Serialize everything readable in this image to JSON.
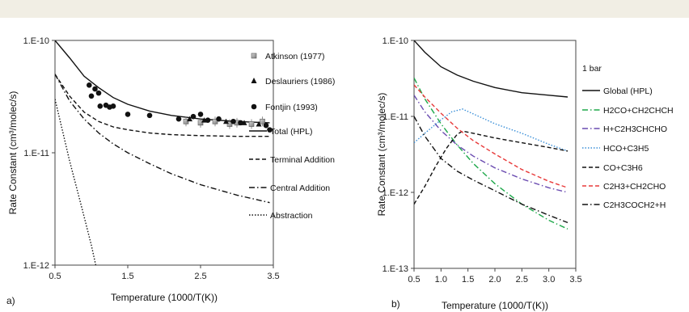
{
  "chart_data": [
    {
      "type": "line",
      "panel_label": "a)",
      "xlabel": "Temperature (1000/T(K))",
      "ylabel": "Rate Constant (cm³/molec/s)",
      "xlim": [
        0.5,
        3.5
      ],
      "ylim": [
        1e-12,
        1e-10
      ],
      "yscale": "log",
      "x_ticks": [
        0.5,
        1.5,
        2.5,
        3.5
      ],
      "x_tick_labels": [
        "0.5",
        "1.5",
        "2.5",
        "3.5"
      ],
      "y_ticks": [
        1e-12,
        1e-11,
        1e-10
      ],
      "y_tick_labels": [
        "1.E-12",
        "1.E-11",
        "1.E-10"
      ],
      "grid": false,
      "legend_position": "right",
      "marker_series": [
        {
          "name": "Atkinson (1977)",
          "marker": "square",
          "color": "#9a9a9a",
          "x": [
            2.3,
            2.5,
            2.7,
            2.9,
            3.0,
            3.2,
            3.35
          ],
          "y": [
            1.9e-11,
            1.85e-11,
            1.9e-11,
            1.8e-11,
            1.85e-11,
            1.8e-11,
            1.9e-11
          ]
        },
        {
          "name": "Deslauriers (1986)",
          "marker": "triangle",
          "color": "#111111",
          "x": [
            2.35,
            2.55,
            2.85,
            3.1,
            3.3
          ],
          "y": [
            2e-11,
            1.95e-11,
            1.9e-11,
            1.85e-11,
            1.8e-11
          ]
        },
        {
          "name": "Fontjin (1993)",
          "marker": "circle",
          "color": "#111111",
          "x": [
            0.97,
            1.0,
            1.05,
            1.1,
            1.12,
            1.2,
            1.25,
            1.3,
            1.5,
            1.8,
            2.2,
            2.4,
            2.5,
            2.6,
            2.75,
            2.95,
            3.05,
            3.4,
            3.45
          ],
          "y": [
            4e-11,
            3.2e-11,
            3.7e-11,
            3.4e-11,
            2.6e-11,
            2.65e-11,
            2.55e-11,
            2.6e-11,
            2.2e-11,
            2.15e-11,
            2e-11,
            2.1e-11,
            2.2e-11,
            1.95e-11,
            2e-11,
            1.9e-11,
            1.85e-11,
            1.75e-11,
            1.6e-11
          ]
        }
      ],
      "series": [
        {
          "name": "Total (HPL)",
          "style": "solid",
          "color": "#111111",
          "x": [
            0.5,
            0.7,
            0.9,
            1.1,
            1.3,
            1.5,
            1.8,
            2.1,
            2.5,
            3.0,
            3.45
          ],
          "y": [
            1e-10,
            7e-11,
            4.8e-11,
            3.8e-11,
            3.1e-11,
            2.7e-11,
            2.35e-11,
            2.15e-11,
            2e-11,
            1.9e-11,
            1.85e-11
          ]
        },
        {
          "name": "Terminal Addition",
          "style": "dashed",
          "color": "#111111",
          "x": [
            0.5,
            0.7,
            0.9,
            1.1,
            1.3,
            1.5,
            1.8,
            2.1,
            2.5,
            3.0,
            3.45
          ],
          "y": [
            5e-11,
            3.2e-11,
            2.3e-11,
            1.9e-11,
            1.7e-11,
            1.6e-11,
            1.5e-11,
            1.45e-11,
            1.42e-11,
            1.4e-11,
            1.4e-11
          ]
        },
        {
          "name": "Central Addition",
          "style": "dashdot",
          "color": "#111111",
          "x": [
            0.5,
            0.7,
            0.9,
            1.1,
            1.3,
            1.5,
            1.8,
            2.1,
            2.5,
            3.0,
            3.45
          ],
          "y": [
            5e-11,
            2.9e-11,
            2e-11,
            1.5e-11,
            1.2e-11,
            1e-11,
            8e-12,
            6.5e-12,
            5.2e-12,
            4.2e-12,
            3.6e-12
          ]
        },
        {
          "name": "Abstraction",
          "style": "dotted",
          "color": "#111111",
          "x": [
            0.5,
            0.6,
            0.7,
            0.8,
            0.9,
            1.0,
            1.06
          ],
          "y": [
            3e-11,
            1.6e-11,
            8.5e-12,
            4.8e-12,
            2.7e-12,
            1.5e-12,
            1e-12
          ]
        }
      ]
    },
    {
      "type": "line",
      "panel_label": "b)",
      "xlabel": "Temperature (1000/T(K))",
      "ylabel": "Rate Constant (cm³/molec/s)",
      "xlim": [
        0.5,
        3.5
      ],
      "ylim": [
        1e-13,
        1e-10
      ],
      "yscale": "log",
      "x_ticks": [
        0.5,
        1.0,
        1.5,
        2.0,
        2.5,
        3.0,
        3.5
      ],
      "x_tick_labels": [
        "0.5",
        "1.0",
        "1.5",
        "2.0",
        "2.5",
        "3.0",
        "3.5"
      ],
      "y_ticks": [
        1e-13,
        1e-12,
        1e-11,
        1e-10
      ],
      "y_tick_labels": [
        "1.E-13",
        "1.E-12",
        "1.E-11",
        "1.E-10"
      ],
      "grid": false,
      "legend_title": "1 bar",
      "legend_position": "right",
      "series": [
        {
          "name": "Global (HPL)",
          "style": "solid",
          "color": "#111111",
          "x": [
            0.5,
            0.7,
            1.0,
            1.3,
            1.6,
            2.0,
            2.5,
            3.0,
            3.35
          ],
          "y": [
            1e-10,
            7e-11,
            4.5e-11,
            3.5e-11,
            2.9e-11,
            2.4e-11,
            2.05e-11,
            1.9e-11,
            1.8e-11
          ]
        },
        {
          "name": "H2CO+CH2CHCH",
          "style": "dashdot",
          "color": "#1ea84a",
          "x": [
            0.5,
            0.7,
            1.0,
            1.3,
            1.6,
            2.0,
            2.5,
            3.0,
            3.35
          ],
          "y": [
            3.2e-11,
            1.7e-11,
            8e-12,
            4.2e-12,
            2.4e-12,
            1.3e-12,
            7e-13,
            4.3e-13,
            3.3e-13
          ]
        },
        {
          "name": "H+C2H3CHCHO",
          "style": "dashdot",
          "color": "#6a4bb0",
          "x": [
            0.5,
            0.7,
            1.0,
            1.3,
            1.6,
            2.0,
            2.5,
            3.0,
            3.35
          ],
          "y": [
            1.9e-11,
            1.15e-11,
            6.5e-12,
            4.2e-12,
            3e-12,
            2.1e-12,
            1.5e-12,
            1.15e-12,
            1e-12
          ]
        },
        {
          "name": "HCO+C3H5",
          "style": "dotted",
          "color": "#3a8fd8",
          "x": [
            0.5,
            0.7,
            1.0,
            1.2,
            1.4,
            1.7,
            2.0,
            2.5,
            3.0,
            3.35
          ],
          "y": [
            4.5e-12,
            6e-12,
            9e-12,
            1.15e-11,
            1.25e-11,
            1e-11,
            8e-12,
            6e-12,
            4.3e-12,
            3.5e-12
          ]
        },
        {
          "name": "CO+C3H6",
          "style": "dashed",
          "color": "#111111",
          "x": [
            0.5,
            0.7,
            0.9,
            1.1,
            1.3,
            1.4,
            1.6,
            2.0,
            2.5,
            3.0,
            3.35
          ],
          "y": [
            7e-13,
            1.2e-12,
            2.2e-12,
            3.8e-12,
            5.8e-12,
            6.4e-12,
            6e-12,
            5.2e-12,
            4.5e-12,
            3.9e-12,
            3.5e-12
          ]
        },
        {
          "name": "C2H3+CH2CHO",
          "style": "dashed",
          "color": "#e83a3a",
          "x": [
            0.5,
            0.7,
            1.0,
            1.3,
            1.6,
            2.0,
            2.5,
            3.0,
            3.35
          ],
          "y": [
            2.6e-11,
            1.8e-11,
            1.1e-11,
            7e-12,
            4.8e-12,
            3.2e-12,
            2e-12,
            1.4e-12,
            1.15e-12
          ]
        },
        {
          "name": "C2H3COCH2+H",
          "style": "dashdot",
          "color": "#111111",
          "x": [
            0.5,
            0.7,
            1.0,
            1.3,
            1.6,
            2.0,
            2.5,
            3.0,
            3.35
          ],
          "y": [
            1e-11,
            5.5e-12,
            2.8e-12,
            1.9e-12,
            1.45e-12,
            1.05e-12,
            7e-13,
            5e-13,
            4e-13
          ]
        }
      ]
    }
  ]
}
